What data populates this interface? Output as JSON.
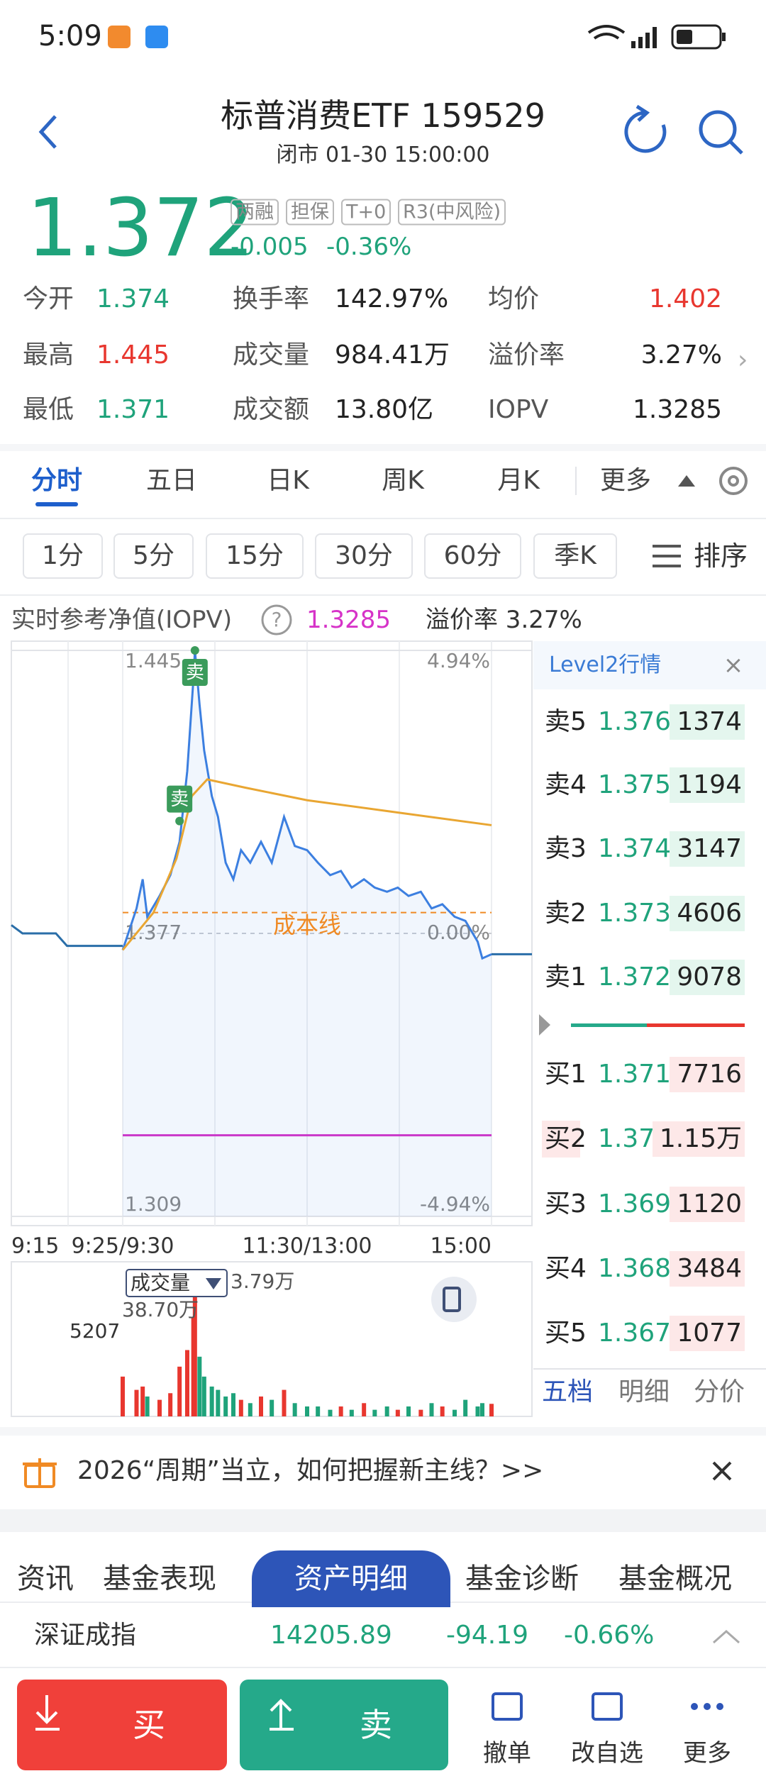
{
  "status_bar": {
    "time": "5:09"
  },
  "header": {
    "title": "标普消费ETF 159529",
    "subtitle": "闭市 01-30 15:00:00"
  },
  "quote": {
    "price": "1.372",
    "change": "-0.005",
    "change_pct": "-0.36%",
    "color": "#1fa37b",
    "tags": [
      "两融",
      "担保",
      "T+0",
      "R3(中风险)"
    ]
  },
  "stats": [
    [
      {
        "label": "今开",
        "value": "1.374",
        "color": "#1fa37b"
      },
      {
        "label": "换手率",
        "value": "142.97%",
        "color": "#222222"
      },
      {
        "label": "均价",
        "value": "1.402",
        "color": "#e8372f"
      }
    ],
    [
      {
        "label": "最高",
        "value": "1.445",
        "color": "#e8372f"
      },
      {
        "label": "成交量",
        "value": "984.41万",
        "color": "#222222"
      },
      {
        "label": "溢价率",
        "value": "3.27%",
        "color": "#222222"
      }
    ],
    [
      {
        "label": "最低",
        "value": "1.371",
        "color": "#1fa37b"
      },
      {
        "label": "成交额",
        "value": "13.80亿",
        "color": "#222222"
      },
      {
        "label": "IOPV",
        "value": "1.3285",
        "color": "#222222"
      }
    ]
  ],
  "chart_tabs": {
    "items": [
      "分时",
      "五日",
      "日K",
      "周K",
      "月K"
    ],
    "more": "更多",
    "active": 0
  },
  "periods": {
    "items": [
      "1分",
      "5分",
      "15分",
      "30分",
      "60分",
      "季K"
    ],
    "sort": "排序"
  },
  "iopv": {
    "label": "实时参考净值(IOPV)",
    "help": "?",
    "value": "1.3285",
    "premium": "溢价率 3.27%"
  },
  "chart_data": {
    "type": "line",
    "ylim": [
      1.309,
      1.445
    ],
    "yticks": [
      1.445,
      1.377,
      1.309
    ],
    "y2lim": [
      -4.94,
      4.94
    ],
    "y2ticks": [
      {
        "value": 4.94,
        "label": "4.94%"
      },
      {
        "value": 0,
        "label": "0.00%"
      },
      {
        "value": -4.94,
        "label": "-4.94%"
      }
    ],
    "xticks": [
      "9:15",
      "9:25/9:30",
      "11:30/13:00",
      "15:00"
    ],
    "series": [
      {
        "color": "#3c7fe0",
        "x": [
          "9:30",
          "9:39",
          "9:43",
          "9:46",
          "9:54",
          "10:01",
          "10:07",
          "10:12",
          "10:16",
          "10:17",
          "10:20",
          "10:23",
          "10:28",
          "10:32",
          "10:37",
          "10:42",
          "10:47",
          "10:53",
          "11:00",
          "11:07",
          "11:15",
          "11:22",
          "13:00",
          "13:07",
          "13:15",
          "13:22",
          "13:29",
          "13:37",
          "13:44",
          "13:52",
          "13:59",
          "14:06",
          "14:14",
          "14:21",
          "14:28",
          "14:36",
          "14:43",
          "14:51",
          "14:54",
          "15:00"
        ],
        "values": [
          1.373,
          1.383,
          1.39,
          1.381,
          1.386,
          1.391,
          1.399,
          1.416,
          1.438,
          1.445,
          1.432,
          1.421,
          1.41,
          1.405,
          1.394,
          1.39,
          1.397,
          1.394,
          1.399,
          1.394,
          1.405,
          1.398,
          1.397,
          1.394,
          1.391,
          1.392,
          1.388,
          1.39,
          1.388,
          1.387,
          1.388,
          1.386,
          1.387,
          1.383,
          1.384,
          1.381,
          1.38,
          1.375,
          1.371,
          1.372
        ]
      },
      {
        "color": "#e9a632",
        "x": [
          "9:30",
          "9:50",
          "10:05",
          "10:15",
          "10:25",
          "10:50",
          "13:00",
          "14:00",
          "15:00"
        ],
        "values": [
          1.373,
          1.382,
          1.395,
          1.41,
          1.414,
          1.412,
          1.409,
          1.406,
          1.403
        ]
      },
      {
        "color": "#2a6ea8",
        "x": [
          "9:15",
          "9:16",
          "9:19",
          "9:20",
          "9:23",
          "9:25"
        ],
        "values": [
          1.379,
          1.377,
          1.377,
          1.374,
          1.374,
          1.374
        ]
      }
    ],
    "cost_line": {
      "label": "成本线",
      "value": 1.382,
      "color": "#f08a24"
    },
    "iopv_line": {
      "value": 1.3285,
      "color": "#d633c8"
    },
    "markers": [
      {
        "label": "卖",
        "x": "10:07",
        "value": 1.404
      },
      {
        "label": "卖",
        "x": "10:17",
        "value": 1.445
      }
    ],
    "volume": {
      "label": "成交量",
      "current": "3.79万",
      "auction_label": "5207",
      "ylim": [
        0,
        38.7
      ],
      "yticks": [
        {
          "value": 38.7,
          "label": "38.70万"
        }
      ],
      "values": [
        12,
        8,
        9,
        6,
        5,
        7,
        15,
        20,
        30,
        38.7,
        18,
        12,
        9,
        8,
        6,
        7,
        5,
        4,
        6,
        5,
        8,
        4,
        3,
        3,
        2,
        3,
        2,
        4,
        2,
        3,
        2,
        3,
        2,
        4,
        3,
        2,
        5,
        3,
        4,
        3.79
      ],
      "up_color": "#e8372f",
      "down_color": "#1fa37b"
    }
  },
  "order_book": {
    "title": "Level2行情",
    "sell": [
      {
        "label": "卖5",
        "price": "1.376",
        "qty": "1374"
      },
      {
        "label": "卖4",
        "price": "1.375",
        "qty": "1194"
      },
      {
        "label": "卖3",
        "price": "1.374",
        "qty": "3147"
      },
      {
        "label": "卖2",
        "price": "1.373",
        "qty": "4606"
      },
      {
        "label": "卖1",
        "price": "1.372",
        "qty": "9078"
      }
    ],
    "buy": [
      {
        "label": "买1",
        "price": "1.371",
        "qty": "7716"
      },
      {
        "label": "买2",
        "price": "1.370",
        "qty": "1.15万"
      },
      {
        "label": "买3",
        "price": "1.369",
        "qty": "1120"
      },
      {
        "label": "买4",
        "price": "1.368",
        "qty": "3484"
      },
      {
        "label": "买5",
        "price": "1.367",
        "qty": "1077"
      }
    ],
    "tabs": [
      "五档",
      "明细",
      "分价"
    ]
  },
  "banner": {
    "text": "2026“周期”当立，如何把握新主线？>>"
  },
  "content_tabs": {
    "items": [
      "资讯",
      "基金表现",
      "资产明细",
      "基金诊断",
      "基金概况"
    ],
    "active": 2
  },
  "index_bar": {
    "name": "深证成指",
    "value": "14205.89",
    "change": "-94.19",
    "change_pct": "-0.66%"
  },
  "actions": {
    "buy": "买",
    "sell": "卖",
    "items": [
      "撤单",
      "改自选",
      "更多"
    ]
  }
}
